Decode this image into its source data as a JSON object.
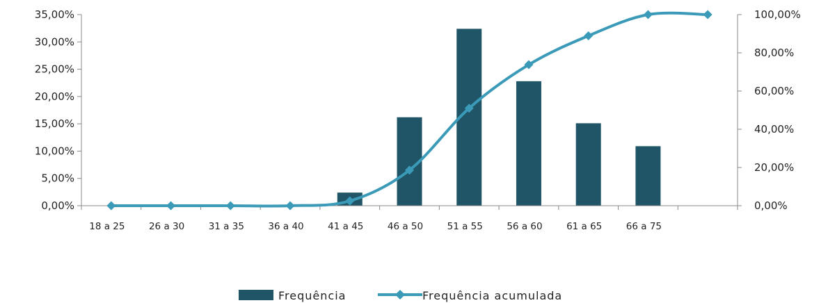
{
  "chart_data": {
    "type": "bar",
    "categories": [
      "18 a 25",
      "26 a 30",
      "31 a 35",
      "36 a 40",
      "41 a 45",
      "46 a 50",
      "51 a 55",
      "56 a 60",
      "61 a 65",
      "66 a 75",
      ""
    ],
    "series": [
      {
        "name": "Frequência",
        "type": "bar",
        "axis": "left",
        "color": "#1f5566",
        "values": [
          0,
          0,
          0,
          0,
          2.4,
          16.2,
          32.4,
          22.8,
          15.1,
          10.9,
          null
        ]
      },
      {
        "name": "Frequência acumulada",
        "type": "line",
        "axis": "right",
        "color": "#3a9ab8",
        "marker": "diamond",
        "values": [
          0,
          0,
          0,
          0,
          2.5,
          18.6,
          51.0,
          73.8,
          88.9,
          100,
          100
        ]
      }
    ],
    "y_left": {
      "ylim": [
        0,
        35
      ],
      "ticks": [
        0,
        5,
        10,
        15,
        20,
        25,
        30,
        35
      ],
      "tick_labels": [
        "0,00%",
        "5,00%",
        "10,00%",
        "15,00%",
        "20,00%",
        "25,00%",
        "30,00%",
        "35,00%"
      ]
    },
    "y_right": {
      "ylim": [
        0,
        100
      ],
      "ticks": [
        0,
        20,
        40,
        60,
        80,
        100
      ],
      "tick_labels": [
        "0,00%",
        "20,00%",
        "40,00%",
        "60,00%",
        "80,00%",
        "100,00%"
      ]
    },
    "grid": false,
    "legend": {
      "position": "bottom"
    }
  }
}
